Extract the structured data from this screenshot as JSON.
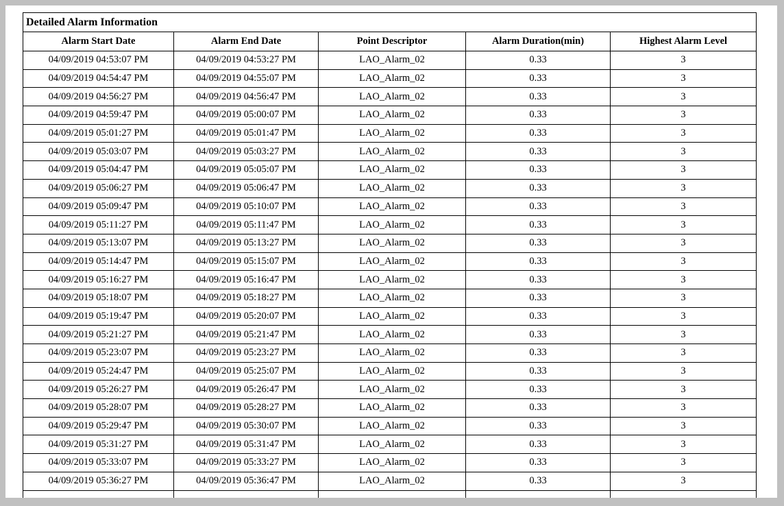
{
  "report": {
    "title": "Detailed Alarm Information"
  },
  "colors": {
    "surround_background": "#c0c0c0",
    "page_background": "#ffffff",
    "border": "#000000",
    "text": "#000000"
  },
  "table": {
    "columns": [
      "Alarm Start Date",
      "Alarm End Date",
      "Point Descriptor",
      "Alarm Duration(min)",
      "Highest Alarm Level"
    ],
    "rows": [
      [
        "04/09/2019 04:53:07 PM",
        "04/09/2019 04:53:27 PM",
        "LAO_Alarm_02",
        "0.33",
        "3"
      ],
      [
        "04/09/2019 04:54:47 PM",
        "04/09/2019 04:55:07 PM",
        "LAO_Alarm_02",
        "0.33",
        "3"
      ],
      [
        "04/09/2019 04:56:27 PM",
        "04/09/2019 04:56:47 PM",
        "LAO_Alarm_02",
        "0.33",
        "3"
      ],
      [
        "04/09/2019 04:59:47 PM",
        "04/09/2019 05:00:07 PM",
        "LAO_Alarm_02",
        "0.33",
        "3"
      ],
      [
        "04/09/2019 05:01:27 PM",
        "04/09/2019 05:01:47 PM",
        "LAO_Alarm_02",
        "0.33",
        "3"
      ],
      [
        "04/09/2019 05:03:07 PM",
        "04/09/2019 05:03:27 PM",
        "LAO_Alarm_02",
        "0.33",
        "3"
      ],
      [
        "04/09/2019 05:04:47 PM",
        "04/09/2019 05:05:07 PM",
        "LAO_Alarm_02",
        "0.33",
        "3"
      ],
      [
        "04/09/2019 05:06:27 PM",
        "04/09/2019 05:06:47 PM",
        "LAO_Alarm_02",
        "0.33",
        "3"
      ],
      [
        "04/09/2019 05:09:47 PM",
        "04/09/2019 05:10:07 PM",
        "LAO_Alarm_02",
        "0.33",
        "3"
      ],
      [
        "04/09/2019 05:11:27 PM",
        "04/09/2019 05:11:47 PM",
        "LAO_Alarm_02",
        "0.33",
        "3"
      ],
      [
        "04/09/2019 05:13:07 PM",
        "04/09/2019 05:13:27 PM",
        "LAO_Alarm_02",
        "0.33",
        "3"
      ],
      [
        "04/09/2019 05:14:47 PM",
        "04/09/2019 05:15:07 PM",
        "LAO_Alarm_02",
        "0.33",
        "3"
      ],
      [
        "04/09/2019 05:16:27 PM",
        "04/09/2019 05:16:47 PM",
        "LAO_Alarm_02",
        "0.33",
        "3"
      ],
      [
        "04/09/2019 05:18:07 PM",
        "04/09/2019 05:18:27 PM",
        "LAO_Alarm_02",
        "0.33",
        "3"
      ],
      [
        "04/09/2019 05:19:47 PM",
        "04/09/2019 05:20:07 PM",
        "LAO_Alarm_02",
        "0.33",
        "3"
      ],
      [
        "04/09/2019 05:21:27 PM",
        "04/09/2019 05:21:47 PM",
        "LAO_Alarm_02",
        "0.33",
        "3"
      ],
      [
        "04/09/2019 05:23:07 PM",
        "04/09/2019 05:23:27 PM",
        "LAO_Alarm_02",
        "0.33",
        "3"
      ],
      [
        "04/09/2019 05:24:47 PM",
        "04/09/2019 05:25:07 PM",
        "LAO_Alarm_02",
        "0.33",
        "3"
      ],
      [
        "04/09/2019 05:26:27 PM",
        "04/09/2019 05:26:47 PM",
        "LAO_Alarm_02",
        "0.33",
        "3"
      ],
      [
        "04/09/2019 05:28:07 PM",
        "04/09/2019 05:28:27 PM",
        "LAO_Alarm_02",
        "0.33",
        "3"
      ],
      [
        "04/09/2019 05:29:47 PM",
        "04/09/2019 05:30:07 PM",
        "LAO_Alarm_02",
        "0.33",
        "3"
      ],
      [
        "04/09/2019 05:31:27 PM",
        "04/09/2019 05:31:47 PM",
        "LAO_Alarm_02",
        "0.33",
        "3"
      ],
      [
        "04/09/2019 05:33:07 PM",
        "04/09/2019 05:33:27 PM",
        "LAO_Alarm_02",
        "0.33",
        "3"
      ],
      [
        "04/09/2019 05:36:27 PM",
        "04/09/2019 05:36:47 PM",
        "LAO_Alarm_02",
        "0.33",
        "3"
      ]
    ]
  }
}
